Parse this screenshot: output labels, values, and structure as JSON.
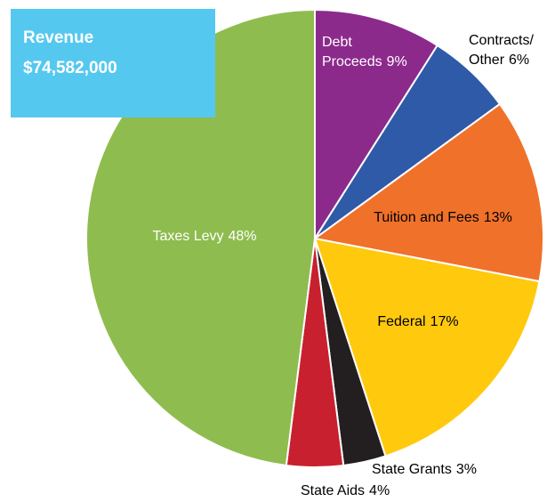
{
  "chart_data": {
    "type": "pie",
    "title": "Revenue",
    "subtitle": "$74,582,000",
    "categories": [
      "Debt Proceeds",
      "Contracts/ Other",
      "Tuition and Fees",
      "Federal",
      "State Grants",
      "State Aids",
      "Taxes Levy"
    ],
    "values": [
      9,
      6,
      13,
      17,
      3,
      4,
      48
    ],
    "value_labels": [
      "9%",
      "6%",
      "13%",
      "17%",
      "3%",
      "4%",
      "48%"
    ],
    "colors": [
      "#8c2a8c",
      "#2e5aa8",
      "#f0712a",
      "#ffc90e",
      "#231f20",
      "#c8202f",
      "#8fbc4f"
    ],
    "title_box_color": "#55c8f0"
  }
}
